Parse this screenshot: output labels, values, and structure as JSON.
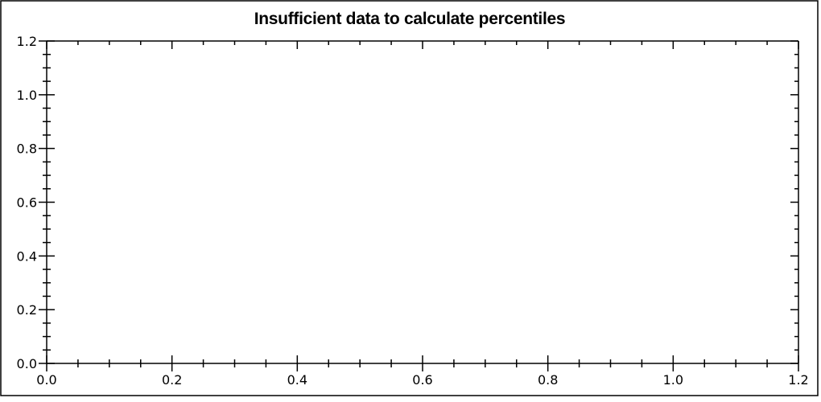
{
  "chart_data": {
    "type": "line",
    "title": "Insufficient data to calculate percentiles",
    "series": [],
    "xlabel": "",
    "ylabel": "",
    "xlim": [
      0,
      1.2
    ],
    "ylim": [
      0,
      1.2
    ],
    "x_major_ticks": [
      0.0,
      0.2,
      0.4,
      0.6,
      0.8,
      1.0,
      1.2
    ],
    "x_tick_labels": [
      "0.0",
      "0.2",
      "0.4",
      "0.6",
      "0.8",
      "1.0",
      "1.2"
    ],
    "y_major_ticks": [
      0.0,
      0.2,
      0.4,
      0.6,
      0.8,
      1.0,
      1.2
    ],
    "y_tick_labels": [
      "0.0",
      "0.2",
      "0.4",
      "0.6",
      "0.8",
      "1.0",
      "1.2"
    ],
    "minor_tick_step": 0.05,
    "grid": false,
    "legend": "none"
  },
  "colors": {
    "axis": "#000000",
    "text": "#000000",
    "background": "#ffffff"
  }
}
